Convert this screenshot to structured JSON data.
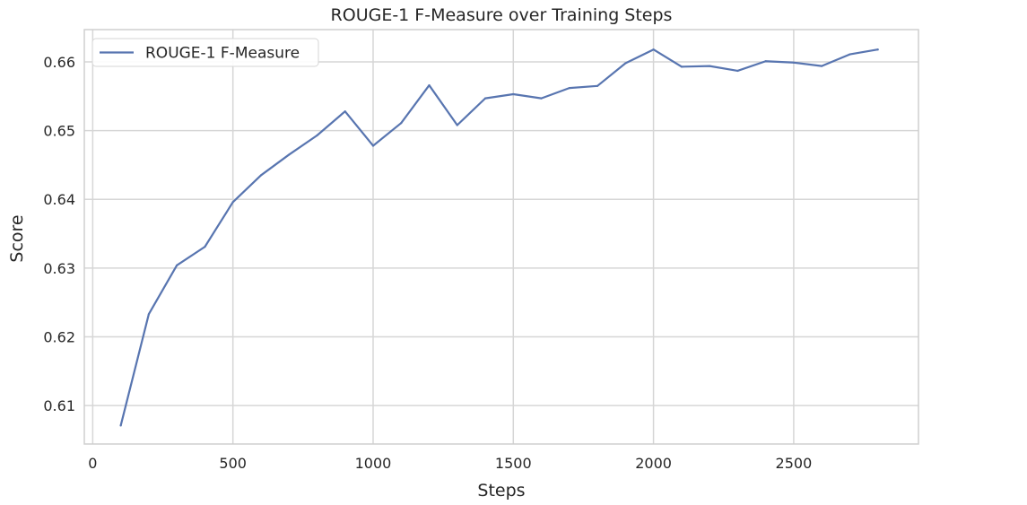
{
  "chart_data": {
    "type": "line",
    "title": "ROUGE-1 F-Measure over Training Steps",
    "xlabel": "Steps",
    "ylabel": "Score",
    "xlim": [
      -30,
      2945
    ],
    "ylim": [
      0.6044,
      0.6647
    ],
    "xticks": [
      0,
      500,
      1000,
      1500,
      2000,
      2500
    ],
    "yticks": [
      0.61,
      0.62,
      0.63,
      0.64,
      0.65,
      0.66
    ],
    "grid": true,
    "legend_position": "top-left",
    "series": [
      {
        "name": "ROUGE-1 F-Measure",
        "color": "#5875b0",
        "x": [
          100,
          200,
          300,
          400,
          500,
          600,
          700,
          800,
          900,
          1000,
          1100,
          1200,
          1300,
          1400,
          1500,
          1600,
          1700,
          1800,
          1900,
          2000,
          2100,
          2200,
          2300,
          2400,
          2500,
          2600,
          2700,
          2800
        ],
        "y": [
          0.6071,
          0.6233,
          0.6304,
          0.6331,
          0.6396,
          0.6435,
          0.6465,
          0.6493,
          0.6528,
          0.6478,
          0.6511,
          0.6566,
          0.6508,
          0.6547,
          0.6553,
          0.6547,
          0.6562,
          0.6565,
          0.6598,
          0.6618,
          0.6593,
          0.6594,
          0.6587,
          0.6601,
          0.6599,
          0.6594,
          0.6611,
          0.6618
        ]
      }
    ]
  }
}
